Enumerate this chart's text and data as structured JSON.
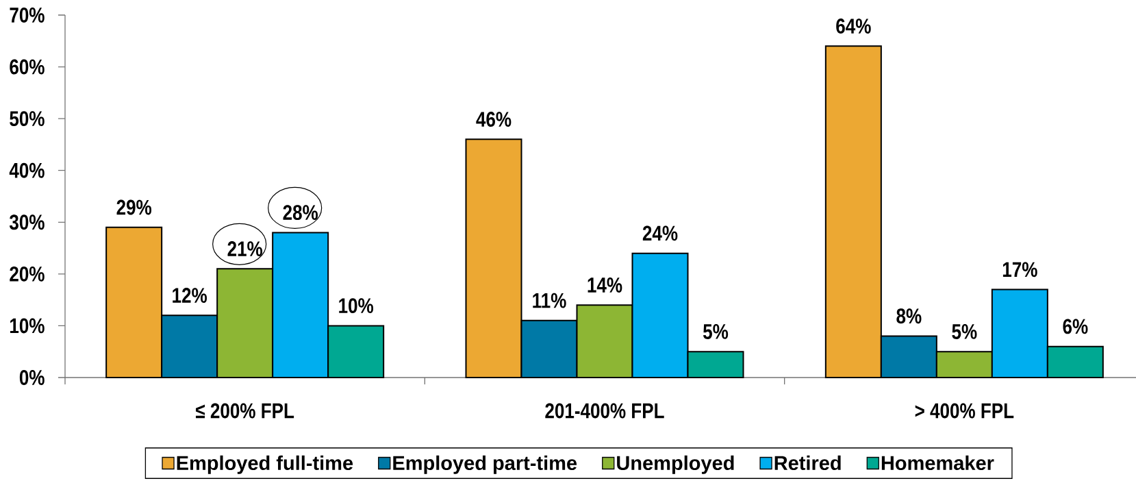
{
  "chart_data": {
    "type": "bar",
    "categories": [
      "≤ 200% FPL",
      "201-400% FPL",
      "> 400% FPL"
    ],
    "series": [
      {
        "name": "Employed full-time",
        "color": "#eca833",
        "values": [
          29,
          46,
          64
        ],
        "value_labels": [
          "29%",
          "46%",
          "64%"
        ]
      },
      {
        "name": "Employed part-time",
        "color": "#0079a6",
        "values": [
          12,
          11,
          8
        ],
        "value_labels": [
          "12%",
          "11%",
          "8%"
        ]
      },
      {
        "name": "Unemployed",
        "color": "#8db634",
        "values": [
          21,
          14,
          5
        ],
        "value_labels": [
          "21%",
          "14%",
          "5%"
        ]
      },
      {
        "name": "Retired",
        "color": "#00aeef",
        "values": [
          28,
          24,
          17
        ],
        "value_labels": [
          "28%",
          "24%",
          "17%"
        ]
      },
      {
        "name": "Homemaker",
        "color": "#00a892",
        "values": [
          10,
          5,
          6
        ],
        "value_labels": [
          "10%",
          "5%",
          "6%"
        ]
      }
    ],
    "ylim": [
      0,
      70
    ],
    "yticks": [
      {
        "value": 0,
        "label": "0%"
      },
      {
        "value": 10,
        "label": "10%"
      },
      {
        "value": 20,
        "label": "20%"
      },
      {
        "value": 30,
        "label": "30%"
      },
      {
        "value": 40,
        "label": "40%"
      },
      {
        "value": 50,
        "label": "50%"
      },
      {
        "value": 60,
        "label": "60%"
      },
      {
        "value": 70,
        "label": "70%"
      }
    ],
    "legend": "bottom"
  }
}
